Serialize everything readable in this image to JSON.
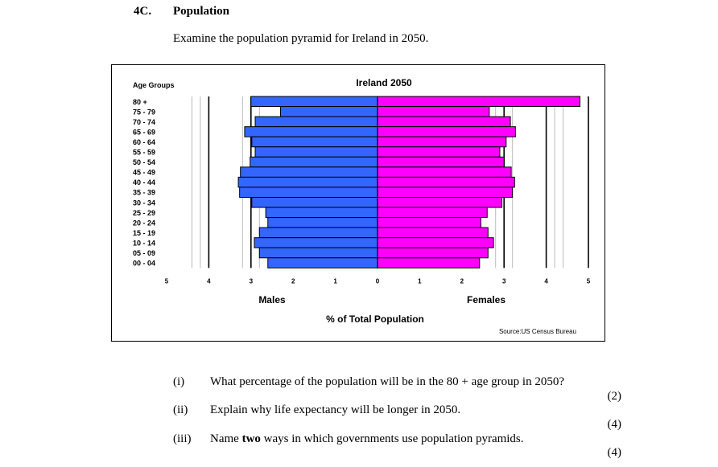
{
  "question": {
    "number": "4C.",
    "title": "Population",
    "intro": "Examine the population pyramid for Ireland in 2050."
  },
  "chart_data": {
    "type": "bar",
    "orientation": "horizontal-pyramid",
    "title": "Ireland 2050",
    "y_axis_title": "Age Groups",
    "xlabel": "% of Total Population",
    "source": "Source:US Census Bureau",
    "categories": [
      "80 +",
      "75 - 79",
      "70 - 74",
      "65 - 69",
      "60 - 64",
      "55 - 59",
      "50 - 54",
      "45 - 49",
      "40 - 44",
      "35 - 39",
      "30 - 34",
      "25 - 29",
      "20 - 24",
      "15 - 19",
      "10 - 14",
      "05 - 09",
      "00 - 04"
    ],
    "series": [
      {
        "name": "Males",
        "color": "#3366ff",
        "values": [
          3.0,
          2.3,
          2.9,
          3.15,
          2.98,
          2.9,
          3.02,
          3.25,
          3.3,
          3.27,
          2.98,
          2.65,
          2.6,
          2.8,
          2.92,
          2.8,
          2.6
        ]
      },
      {
        "name": "Females",
        "color": "#ff00ff",
        "values": [
          4.8,
          2.65,
          3.15,
          3.27,
          3.05,
          2.9,
          3.0,
          3.17,
          3.25,
          3.2,
          2.95,
          2.6,
          2.45,
          2.62,
          2.75,
          2.62,
          2.42
        ]
      }
    ],
    "xlim": [
      -5,
      5
    ],
    "x_ticks": [
      "5",
      "4",
      "3",
      "2",
      "1",
      "0",
      "1",
      "2",
      "3",
      "4",
      "5"
    ],
    "grid": true
  },
  "parts": [
    {
      "num": "(i)",
      "text": "What percentage of the population will be in the 80 + age group in 2050?",
      "marks": "(2)"
    },
    {
      "num": "(ii)",
      "text": "Explain why life expectancy will be longer in 2050.",
      "marks": "(4)"
    },
    {
      "num": "(iii)",
      "text_before": "Name ",
      "text_bold": "two",
      "text_after": " ways in which governments use population pyramids.",
      "marks": "(4)"
    }
  ]
}
